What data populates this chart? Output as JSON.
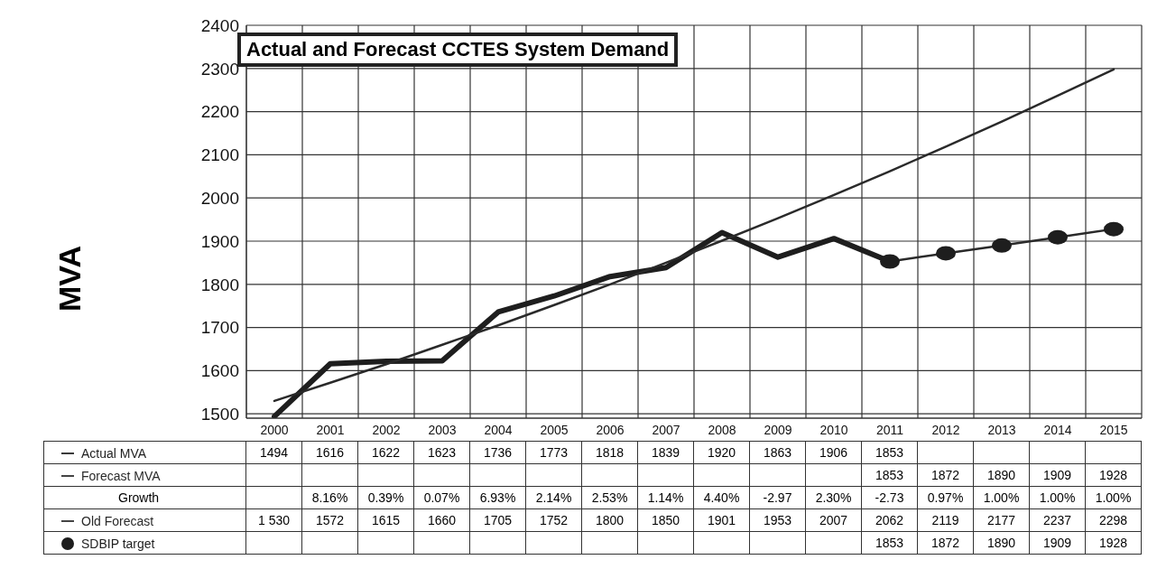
{
  "chart_data": {
    "type": "line",
    "title": "Actual and Forecast CCTES System Demand",
    "ylabel": "MVA",
    "categories": [
      "2000",
      "2001",
      "2002",
      "2003",
      "2004",
      "2005",
      "2006",
      "2007",
      "2008",
      "2009",
      "2010",
      "2011",
      "2012",
      "2013",
      "2014",
      "2015"
    ],
    "series": [
      {
        "name": "Actual MVA",
        "color": "#1e1e1e",
        "values": [
          1494,
          1616,
          1622,
          1623,
          1736,
          1773,
          1818,
          1839,
          1920,
          1863,
          1906,
          1853,
          null,
          null,
          null,
          null
        ]
      },
      {
        "name": "Forecast MVA",
        "color": "#2a2a2a",
        "values": [
          null,
          null,
          null,
          null,
          null,
          null,
          null,
          null,
          null,
          null,
          null,
          1853,
          1872,
          1890,
          1909,
          1928
        ]
      },
      {
        "name": "Old Forecast",
        "color": "#2a2a2a",
        "values": [
          1530,
          1572,
          1615,
          1660,
          1705,
          1752,
          1800,
          1850,
          1901,
          1953,
          2007,
          2062,
          2119,
          2177,
          2237,
          2298
        ],
        "value_labels": [
          "1 530",
          "1572",
          "1615",
          "1660",
          "1705",
          "1752",
          "1800",
          "1850",
          "1901",
          "1953",
          "2007",
          "2062",
          "2119",
          "2177",
          "2237",
          "2298"
        ]
      },
      {
        "name": "SDBIP target",
        "type": "scatter",
        "marker": "circle",
        "color": "#1e1e1e",
        "values": [
          null,
          null,
          null,
          null,
          null,
          null,
          null,
          null,
          null,
          null,
          null,
          1853,
          1872,
          1890,
          1909,
          1928
        ]
      }
    ],
    "annotations": [
      "Growth",
      "8.16%",
      "0.39%",
      "0.07%",
      "6.93%",
      "2.14%",
      "2.53%",
      "1.14%",
      "4.40%",
      "-2.97",
      "2.30%",
      "-2.73",
      "0.97%",
      "1.00%",
      "1.00%",
      "1.00%"
    ],
    "ylim": [
      1490,
      2400
    ],
    "yticks": [
      1500,
      1600,
      1700,
      1800,
      1900,
      2000,
      2100,
      2200,
      2300,
      2400
    ],
    "grid": true,
    "legend": "bottom",
    "data_labels": true
  }
}
